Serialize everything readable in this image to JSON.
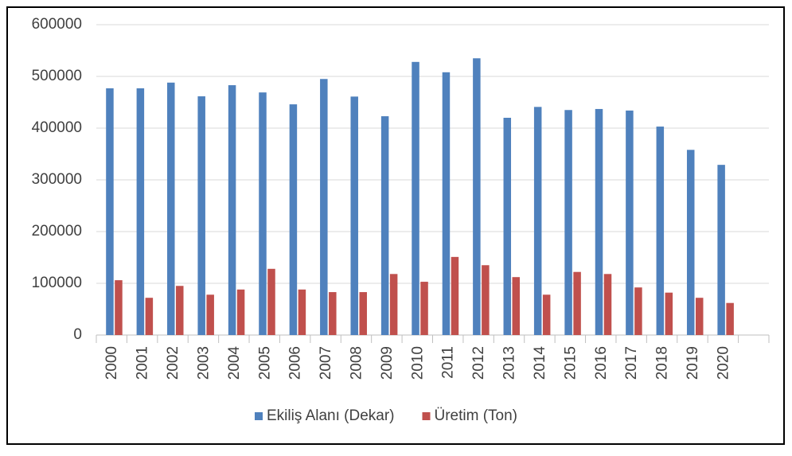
{
  "chart_data": {
    "type": "bar",
    "categories": [
      "2000",
      "2001",
      "2002",
      "2003",
      "2004",
      "2005",
      "2006",
      "2007",
      "2008",
      "2009",
      "2010",
      "2011",
      "2012",
      "2013",
      "2014",
      "2015",
      "2016",
      "2017",
      "2018",
      "2019",
      "2020",
      null
    ],
    "series": [
      {
        "name": "Ekiliş Alanı (Dekar)",
        "color": "#4f81bd",
        "values": [
          477000,
          477000,
          488000,
          461500,
          483000,
          469000,
          446000,
          495000,
          461000,
          423000,
          528000,
          508000,
          535000,
          420000,
          441000,
          435000,
          437000,
          434000,
          403000,
          358000,
          329000,
          null
        ]
      },
      {
        "name": "Üretim (Ton)",
        "color": "#c0504d",
        "values": [
          106000,
          72000,
          95000,
          78000,
          88000,
          128000,
          88000,
          83000,
          83000,
          118000,
          103000,
          151000,
          135000,
          112000,
          78000,
          122000,
          118000,
          92000,
          82000,
          72000,
          62000,
          null
        ]
      }
    ],
    "ylim": [
      0,
      600000
    ],
    "yticks": [
      0,
      100000,
      200000,
      300000,
      400000,
      500000,
      600000
    ],
    "grid": true,
    "legend": "bottom"
  }
}
